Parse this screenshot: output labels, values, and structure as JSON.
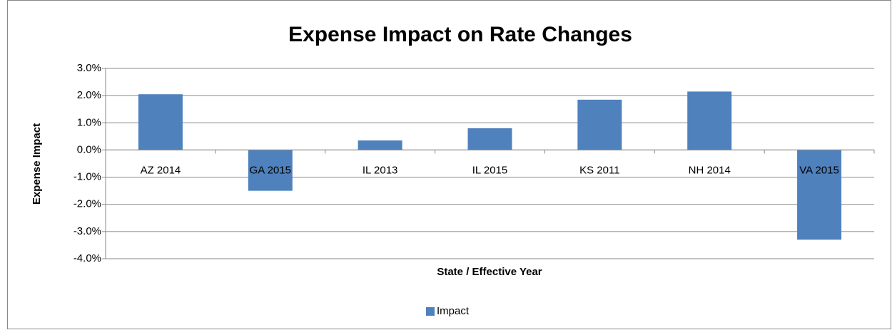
{
  "chart_data": {
    "type": "bar",
    "title": "Expense Impact on Rate Changes",
    "x_label": "State / Effective Year",
    "y_label": "Expense Impact",
    "categories": [
      "AZ 2014",
      "GA 2015",
      "IL 2013",
      "IL 2015",
      "KS 2011",
      "NH 2014",
      "VA 2015"
    ],
    "series": [
      {
        "name": "Impact",
        "color": "#4f81bd",
        "values": [
          2.05,
          -1.5,
          0.35,
          0.8,
          1.85,
          2.15,
          -3.3
        ]
      }
    ],
    "ylim": [
      -4,
      3
    ],
    "yticks": [
      {
        "value": -4,
        "label": "-4.0%"
      },
      {
        "value": -3,
        "label": "-3.0%"
      },
      {
        "value": -2,
        "label": "-2.0%"
      },
      {
        "value": -1,
        "label": "-1.0%"
      },
      {
        "value": 0,
        "label": "0.0%"
      },
      {
        "value": 1,
        "label": "1.0%"
      },
      {
        "value": 2,
        "label": "2.0%"
      },
      {
        "value": 3,
        "label": "3.0%"
      }
    ],
    "grid": true,
    "legend": "bottom"
  }
}
